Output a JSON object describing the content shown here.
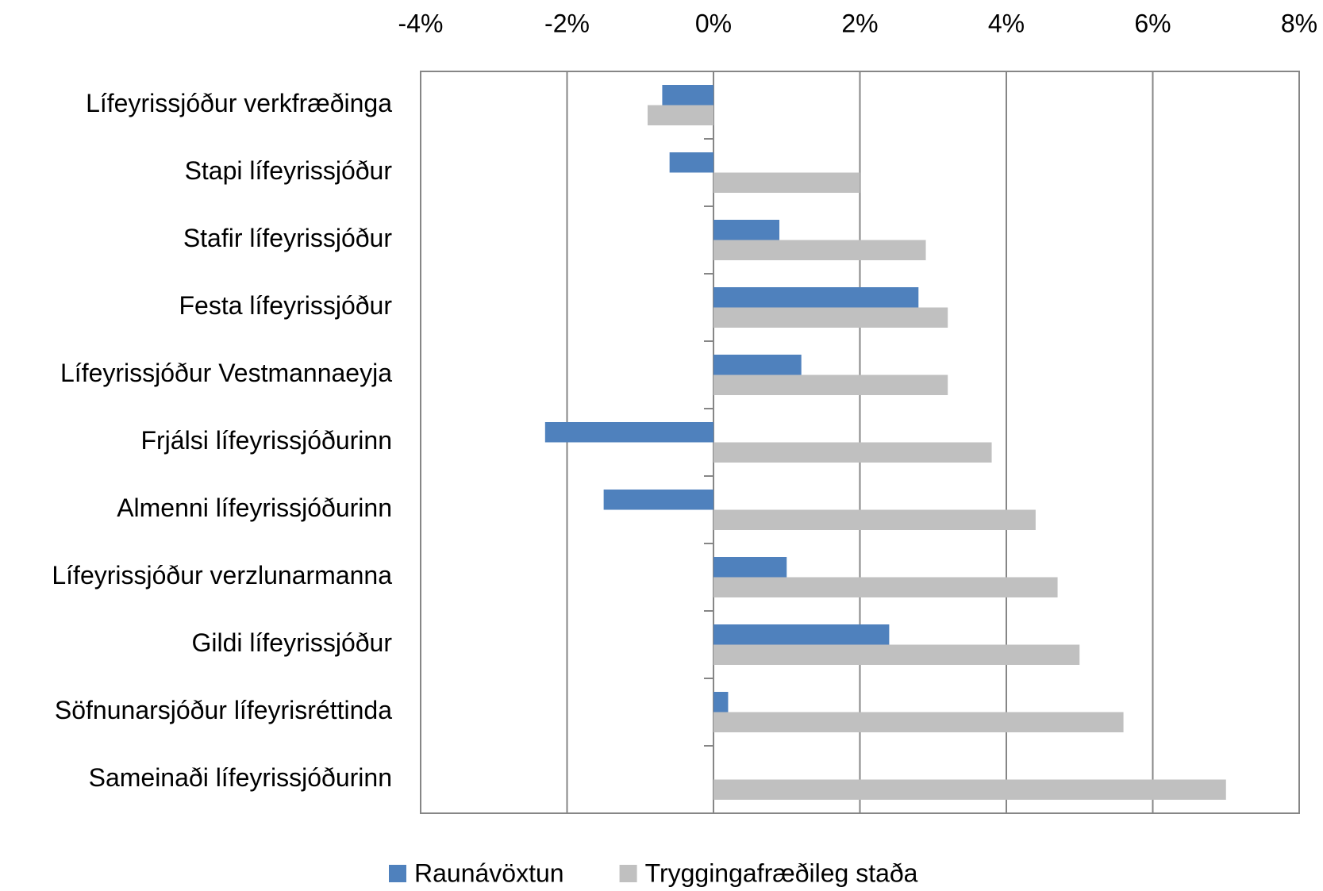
{
  "chart_data": {
    "type": "barh",
    "categories": [
      "Lífeyrissjóður verkfræðinga",
      "Stapi lífeyrissjóður",
      "Stafir lífeyrissjóður",
      "Festa lífeyrissjóður",
      "Lífeyrissjóður Vestmannaeyja",
      "Frjálsi lífeyrissjóðurinn",
      "Almenni lífeyrissjóðurinn",
      "Lífeyrissjóður verzlunarmanna",
      "Gildi lífeyrissjóður",
      "Söfnunarsjóður lífeyrisréttinda",
      "Sameinaði lífeyrissjóðurinn"
    ],
    "series": [
      {
        "name": "Raunávöxtun",
        "color": "#4f81bd",
        "values": [
          -0.7,
          -0.6,
          0.9,
          2.8,
          1.2,
          -2.3,
          -1.5,
          1.0,
          2.4,
          0.2,
          0
        ]
      },
      {
        "name": "Tryggingafræðileg staða",
        "color": "#c0c0c0",
        "values": [
          -0.9,
          2.0,
          2.9,
          3.2,
          3.2,
          3.8,
          4.4,
          4.7,
          5.0,
          5.6,
          7.0
        ]
      }
    ],
    "xlim": [
      -4,
      8
    ],
    "xticks": [
      {
        "value": -4,
        "label": "-4%"
      },
      {
        "value": -2,
        "label": "-2%"
      },
      {
        "value": 0,
        "label": "0%"
      },
      {
        "value": 2,
        "label": "2%"
      },
      {
        "value": 4,
        "label": "4%"
      },
      {
        "value": 6,
        "label": "6%"
      },
      {
        "value": 8,
        "label": "8%"
      }
    ],
    "grid": true,
    "legend": "bottom"
  }
}
